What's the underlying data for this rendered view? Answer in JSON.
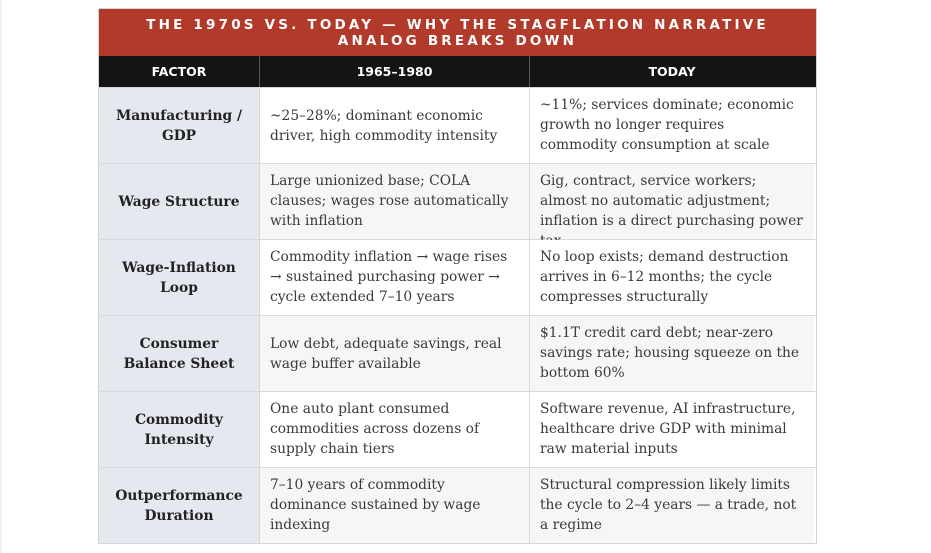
{
  "banner": {
    "line1": "THE 1970S VS. TODAY — WHY THE STAGFLATION NARRATIVE",
    "line2": "ANALOG BREAKS DOWN"
  },
  "headers": {
    "factor": "FACTOR",
    "past": "1965–1980",
    "today": "TODAY"
  },
  "rows": [
    {
      "factor": "Manufacturing / GDP",
      "past": "~25–28%; dominant economic driver, high commodity intensity",
      "today": "~11%; services dominate; economic growth no longer requires commodity consumption at scale"
    },
    {
      "factor": "Wage Structure",
      "past": "Large unionized base; COLA clauses; wages rose automatically with inflation",
      "today": "Gig, contract, service workers; almost no automatic adjustment; inflation is a direct purchasing power tax"
    },
    {
      "factor": "Wage-Inflation Loop",
      "past": "Commodity inflation → wage rises → sustained purchasing power → cycle extended 7–10 years",
      "today": "No loop exists; demand destruction arrives in 6–12 months; the cycle compresses structurally"
    },
    {
      "factor": "Consumer Balance Sheet",
      "past": "Low debt, adequate savings, real wage buffer available",
      "today": "$1.1T credit card debt; near-zero savings rate; housing squeeze on the bottom 60%"
    },
    {
      "factor": "Commodity Intensity",
      "past": "One auto plant consumed commodities across dozens of supply chain tiers",
      "today": "Software revenue, AI infrastructure, healthcare drive GDP with minimal raw material inputs"
    },
    {
      "factor": "Outperformance Duration",
      "past": "7–10 years of commodity dominance sustained by wage indexing",
      "today": "Structural compression likely limits the cycle to 2–4 years — a trade, not a regime"
    }
  ]
}
